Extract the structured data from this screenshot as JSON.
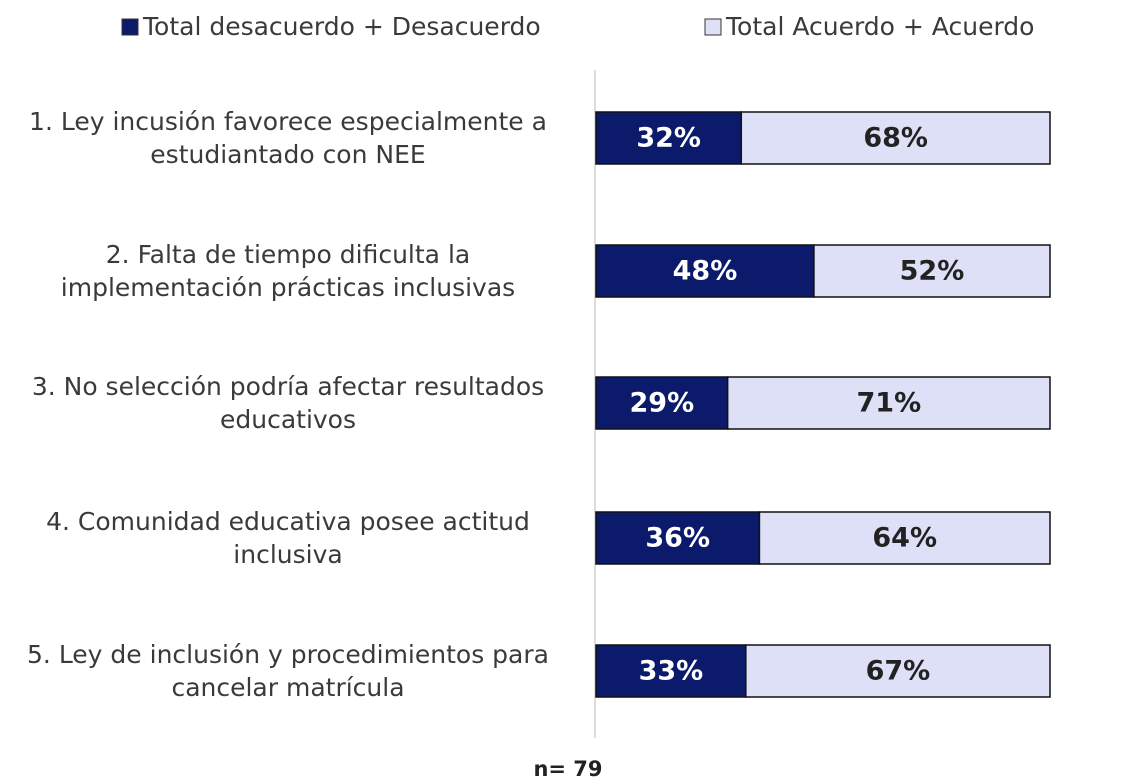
{
  "chart_data": {
    "type": "stacked_bar_horizontal",
    "categories": [
      "1. Ley incusión favorece especialmente a estudiantado con NEE",
      "2. Falta de tiempo dificulta la implementación prácticas inclusivas",
      "3. No selección podría afectar resultados educativos",
      "4. Comunidad educativa posee actitud inclusiva",
      "5.  Ley de inclusión y procedimientos para cancelar matrícula"
    ],
    "series": [
      {
        "name": "Total desacuerdo + Desacuerdo",
        "color": "#0b1a6b",
        "values": [
          32,
          48,
          29,
          36,
          33
        ],
        "value_labels": [
          "32%",
          "48%",
          "29%",
          "36%",
          "33%"
        ]
      },
      {
        "name": "Total Acuerdo + Acuerdo",
        "color": "#dde0f7",
        "values": [
          68,
          52,
          71,
          64,
          67
        ],
        "value_labels": [
          "68%",
          "52%",
          "71%",
          "64%",
          "67%"
        ]
      }
    ],
    "xlim": [
      0,
      100
    ],
    "legend": "top",
    "annotation": "n= 79"
  }
}
